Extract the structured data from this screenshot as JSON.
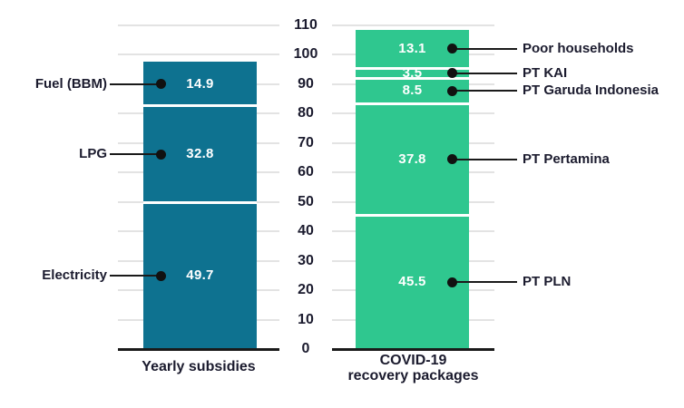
{
  "chart_data": {
    "type": "bar",
    "subtype": "stacked",
    "orientation": "vertical",
    "title": "",
    "ylim": [
      0,
      110
    ],
    "ytick_interval": 10,
    "yticks": [
      0,
      10,
      20,
      30,
      40,
      50,
      60,
      70,
      80,
      90,
      100,
      110
    ],
    "grid": true,
    "value_label_style": "white-inside-segment",
    "categories": [
      "Yearly subsidies",
      "COVID-19 recovery packages"
    ],
    "stacks": [
      {
        "category": "Yearly subsidies",
        "axis_label_lines": [
          "Yearly subsidies"
        ],
        "color": "#0e7290",
        "label_side": "left",
        "total": 97.4,
        "segments_top_to_bottom": [
          {
            "label": "Fuel (BBM)",
            "value": 14.9
          },
          {
            "label": "LPG",
            "value": 32.8
          },
          {
            "label": "Electricity",
            "value": 49.7
          }
        ]
      },
      {
        "category": "COVID-19 recovery packages",
        "axis_label_lines": [
          "COVID-19",
          "recovery packages"
        ],
        "color": "#2fc78f",
        "label_side": "right",
        "total": 108.4,
        "segments_top_to_bottom": [
          {
            "label": "Poor households",
            "value": 13.1
          },
          {
            "label": "PT KAI",
            "value": 3.5
          },
          {
            "label": "PT Garuda Indonesia",
            "value": 8.5
          },
          {
            "label": "PT Pertamina",
            "value": 37.8
          },
          {
            "label": "PT PLN",
            "value": 45.5
          }
        ]
      }
    ],
    "colors": {
      "teal_bar": "#0e7290",
      "green_bar": "#2fc78f",
      "gridline": "#e3e3e3",
      "baseline": "#1a1a1a",
      "text": "#1b1b2e",
      "value_text": "#ffffff",
      "leader_line": "#1a1a1a",
      "dot": "#111111"
    }
  }
}
